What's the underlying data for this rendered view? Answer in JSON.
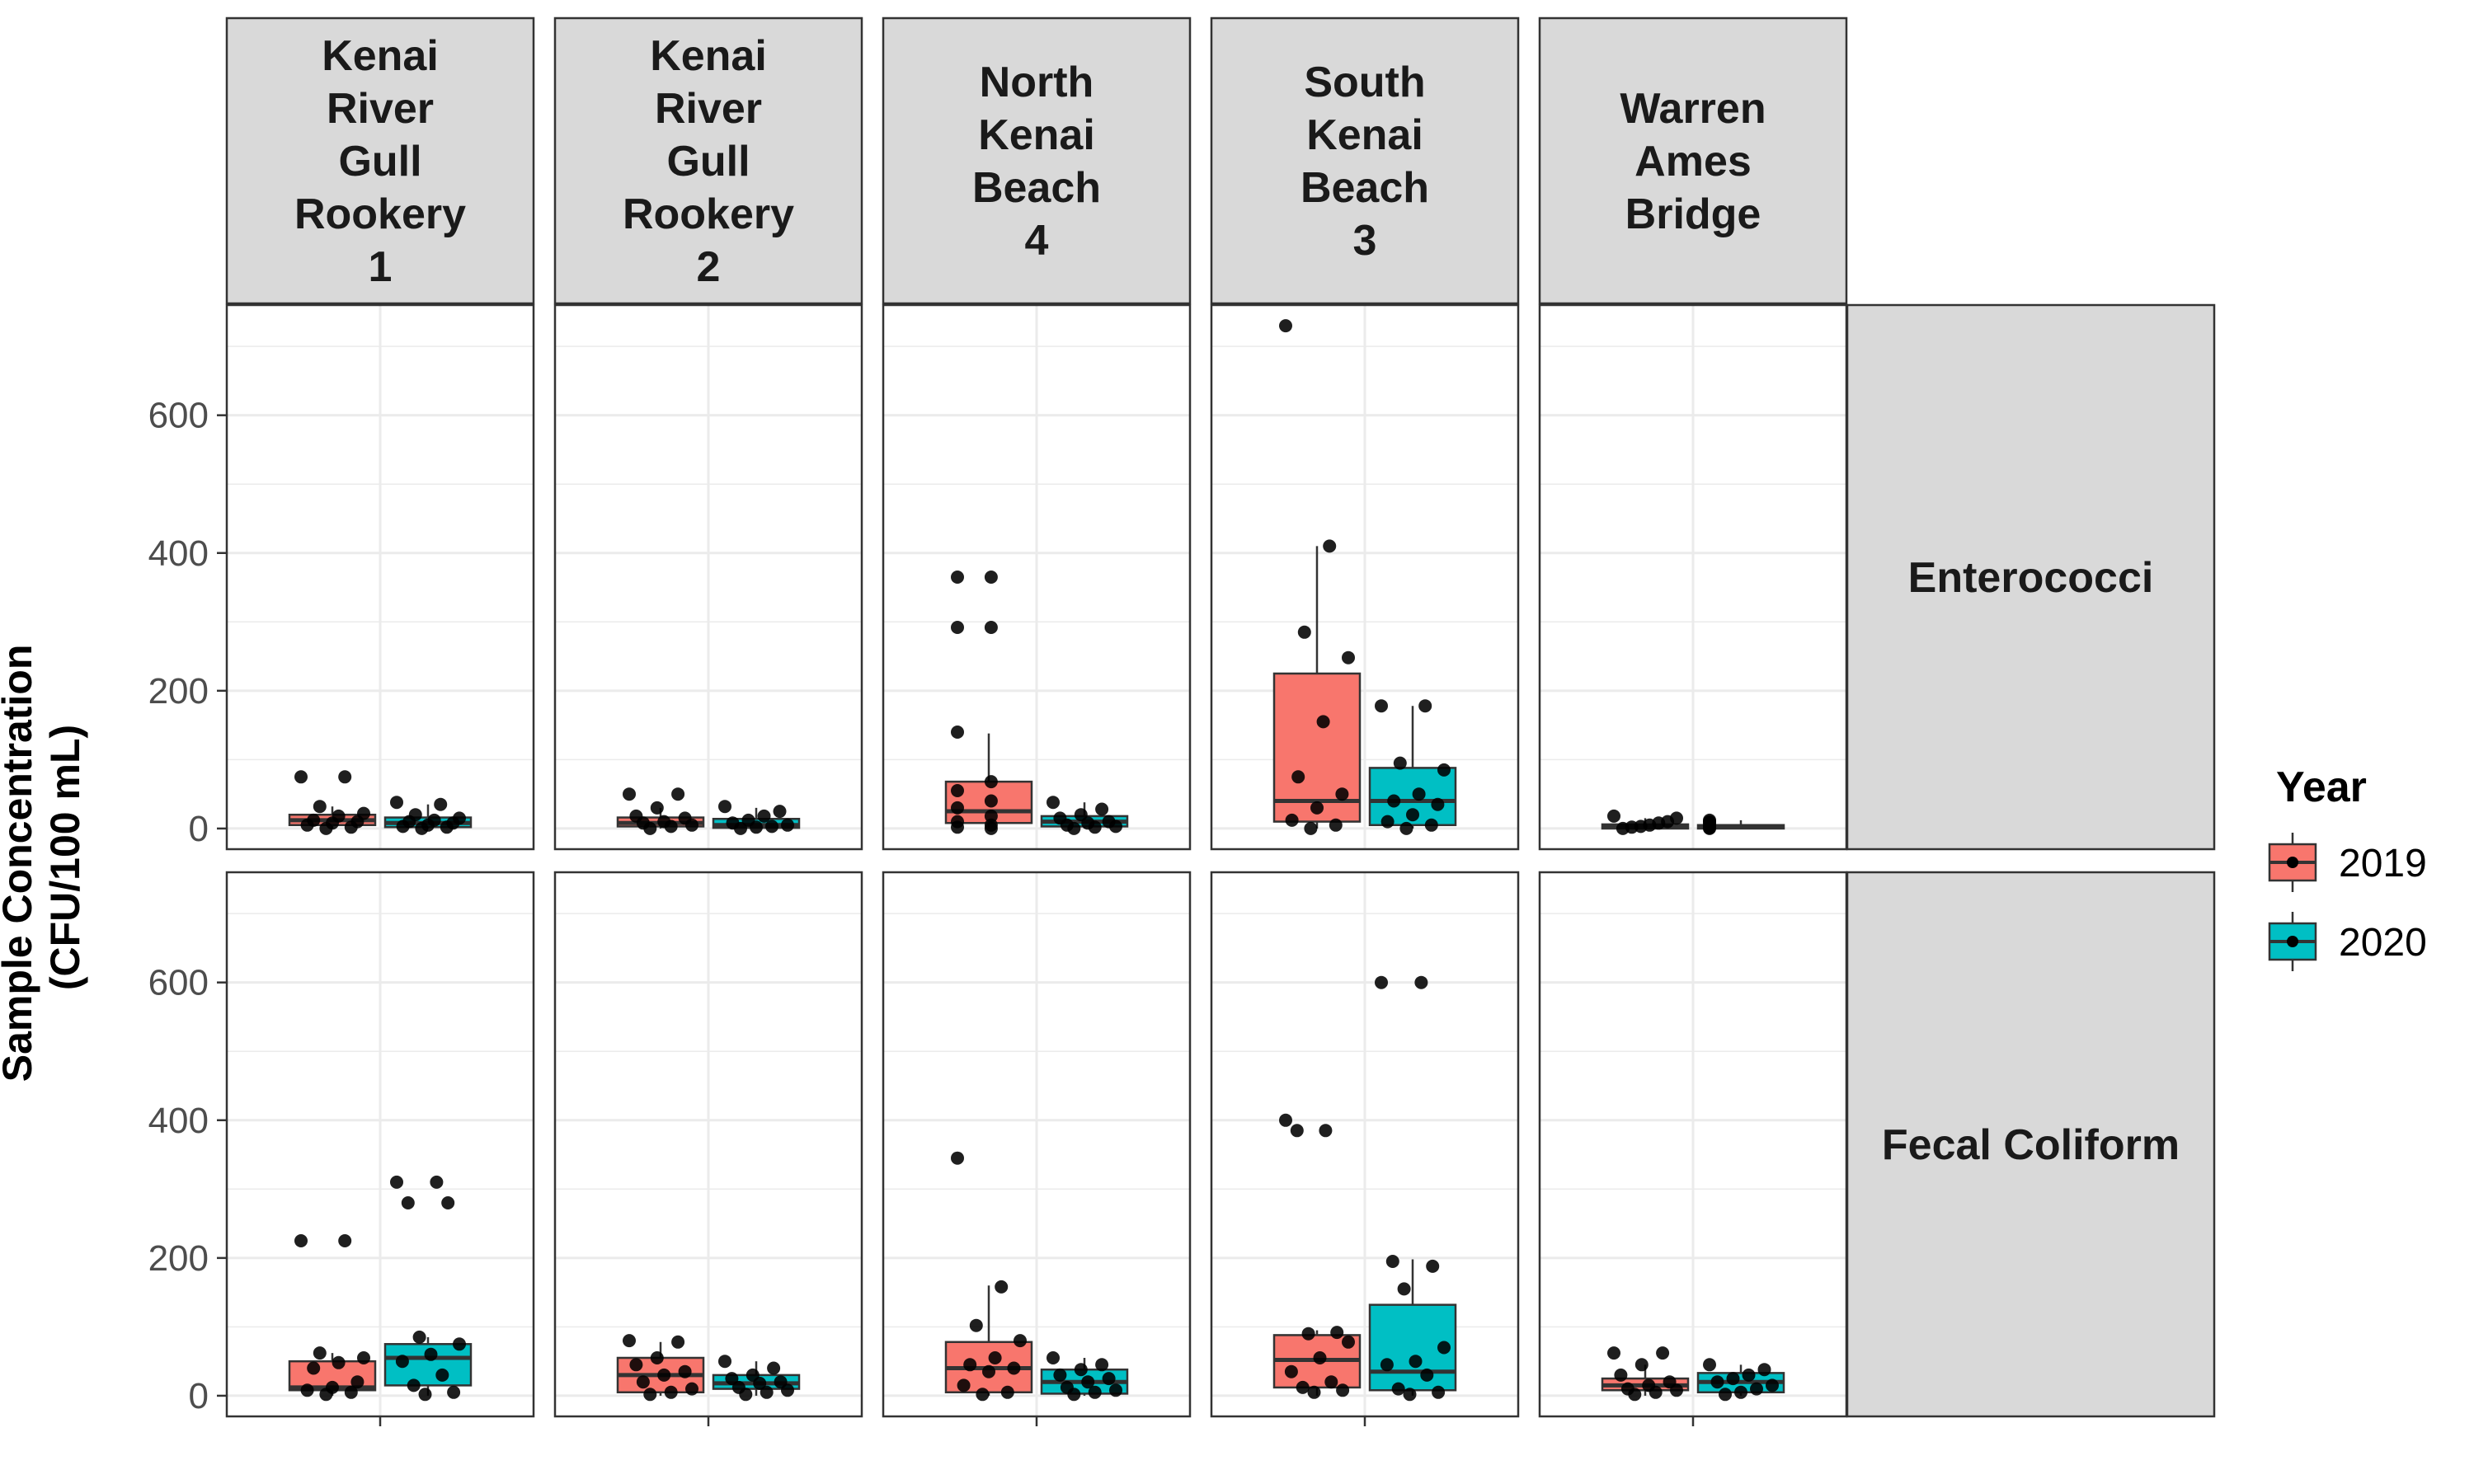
{
  "chart_data": {
    "type": "boxplot",
    "facet_columns": [
      [
        "Kenai",
        "River",
        "Gull",
        "Rookery",
        "1"
      ],
      [
        "Kenai",
        "River",
        "Gull",
        "Rookery",
        "2"
      ],
      [
        "North",
        "Kenai",
        "Beach",
        "4"
      ],
      [
        "South",
        "Kenai",
        "Beach",
        "3"
      ],
      [
        "Warren",
        "Ames",
        "Bridge"
      ]
    ],
    "facet_rows": [
      "Enterococci",
      "Fecal Coliform"
    ],
    "ylabel": [
      "Sample Concentration",
      "(CFU/100 mL)"
    ],
    "ylim": [
      -30,
      760
    ],
    "yticks": [
      0,
      200,
      400,
      600
    ],
    "legend": {
      "title": "Year",
      "position": "right",
      "items": [
        "2019",
        "2020"
      ]
    },
    "colors": {
      "2019": "#F8766D",
      "2020": "#00BFC4",
      "strip": "#d9d9d9",
      "grid": "#ebebeb",
      "border": "#333333",
      "points": "#000000"
    },
    "panels": [
      {
        "row": "Enterococci",
        "col": 1,
        "boxes": [
          {
            "year": "2019",
            "q1": 5,
            "median": 12,
            "q3": 20,
            "whisker_low": 0,
            "whisker_high": 32,
            "points": [
              75,
              75,
              32,
              22,
              18,
              12,
              10,
              8,
              5,
              2,
              0
            ]
          },
          {
            "year": "2020",
            "q1": 2,
            "median": 8,
            "q3": 16,
            "whisker_low": 0,
            "whisker_high": 35,
            "points": [
              38,
              35,
              20,
              15,
              12,
              10,
              8,
              5,
              3,
              2,
              0
            ]
          }
        ]
      },
      {
        "row": "Enterococci",
        "col": 2,
        "boxes": [
          {
            "year": "2019",
            "q1": 3,
            "median": 8,
            "q3": 16,
            "whisker_low": 0,
            "whisker_high": 30,
            "points": [
              50,
              50,
              30,
              18,
              15,
              10,
              8,
              5,
              3,
              0
            ]
          },
          {
            "year": "2020",
            "q1": 1,
            "median": 5,
            "q3": 14,
            "whisker_low": 0,
            "whisker_high": 30,
            "points": [
              32,
              25,
              18,
              12,
              8,
              5,
              3,
              2,
              0
            ]
          }
        ]
      },
      {
        "row": "Enterococci",
        "col": 3,
        "boxes": [
          {
            "year": "2019",
            "q1": 8,
            "median": 25,
            "q3": 68,
            "whisker_low": 0,
            "whisker_high": 138,
            "points": [
              365,
              365,
              292,
              292,
              140,
              68,
              55,
              40,
              30,
              18,
              10,
              5,
              2,
              0
            ]
          },
          {
            "year": "2020",
            "q1": 3,
            "median": 10,
            "q3": 18,
            "whisker_low": 0,
            "whisker_high": 38,
            "points": [
              38,
              28,
              20,
              15,
              10,
              8,
              5,
              3,
              2,
              0
            ]
          }
        ]
      },
      {
        "row": "Enterococci",
        "col": 4,
        "boxes": [
          {
            "year": "2019",
            "q1": 10,
            "median": 40,
            "q3": 225,
            "whisker_low": 0,
            "whisker_high": 410,
            "points": [
              730,
              410,
              285,
              248,
              155,
              75,
              50,
              30,
              12,
              5,
              0
            ]
          },
          {
            "year": "2020",
            "q1": 5,
            "median": 40,
            "q3": 88,
            "whisker_low": 0,
            "whisker_high": 178,
            "points": [
              178,
              178,
              95,
              85,
              50,
              40,
              35,
              20,
              10,
              5,
              0
            ]
          }
        ]
      },
      {
        "row": "Enterococci",
        "col": 5,
        "boxes": [
          {
            "year": "2019",
            "q1": 0,
            "median": 2,
            "q3": 6,
            "whisker_low": 0,
            "whisker_high": 15,
            "points": [
              18,
              15,
              10,
              8,
              5,
              3,
              2,
              0
            ]
          },
          {
            "year": "2020",
            "q1": 0,
            "median": 2,
            "q3": 5,
            "whisker_low": 0,
            "whisker_high": 12,
            "points": [
              12,
              10,
              8,
              5,
              3,
              1,
              0
            ]
          }
        ]
      },
      {
        "row": "Fecal Coliform",
        "col": 1,
        "boxes": [
          {
            "year": "2019",
            "q1": 8,
            "median": 12,
            "q3": 50,
            "whisker_low": 0,
            "whisker_high": 62,
            "points": [
              225,
              225,
              62,
              55,
              48,
              40,
              20,
              12,
              8,
              5,
              2
            ]
          },
          {
            "year": "2020",
            "q1": 15,
            "median": 55,
            "q3": 75,
            "whisker_low": 0,
            "whisker_high": 85,
            "points": [
              310,
              310,
              280,
              280,
              85,
              75,
              60,
              50,
              30,
              15,
              5,
              2
            ]
          }
        ]
      },
      {
        "row": "Fecal Coliform",
        "col": 2,
        "boxes": [
          {
            "year": "2019",
            "q1": 5,
            "median": 30,
            "q3": 55,
            "whisker_low": 0,
            "whisker_high": 78,
            "points": [
              80,
              78,
              55,
              45,
              35,
              30,
              20,
              10,
              5,
              2
            ]
          },
          {
            "year": "2020",
            "q1": 10,
            "median": 18,
            "q3": 30,
            "whisker_low": 0,
            "whisker_high": 50,
            "points": [
              50,
              40,
              30,
              25,
              20,
              18,
              12,
              8,
              5,
              2
            ]
          }
        ]
      },
      {
        "row": "Fecal Coliform",
        "col": 3,
        "boxes": [
          {
            "year": "2019",
            "q1": 5,
            "median": 40,
            "q3": 78,
            "whisker_low": 0,
            "whisker_high": 160,
            "points": [
              345,
              158,
              102,
              80,
              55,
              45,
              40,
              35,
              15,
              5,
              2
            ]
          },
          {
            "year": "2020",
            "q1": 3,
            "median": 20,
            "q3": 38,
            "whisker_low": 0,
            "whisker_high": 55,
            "points": [
              55,
              45,
              38,
              30,
              25,
              20,
              12,
              8,
              5,
              2
            ]
          }
        ]
      },
      {
        "row": "Fecal Coliform",
        "col": 4,
        "boxes": [
          {
            "year": "2019",
            "q1": 12,
            "median": 52,
            "q3": 88,
            "whisker_low": 0,
            "whisker_high": 95,
            "points": [
              400,
              385,
              385,
              92,
              90,
              78,
              55,
              35,
              20,
              12,
              8,
              5
            ]
          },
          {
            "year": "2020",
            "q1": 8,
            "median": 35,
            "q3": 132,
            "whisker_low": 0,
            "whisker_high": 198,
            "points": [
              600,
              600,
              195,
              188,
              155,
              70,
              50,
              45,
              30,
              10,
              5,
              2
            ]
          }
        ]
      },
      {
        "row": "Fecal Coliform",
        "col": 5,
        "boxes": [
          {
            "year": "2019",
            "q1": 8,
            "median": 15,
            "q3": 25,
            "whisker_low": 0,
            "whisker_high": 45,
            "points": [
              62,
              62,
              45,
              30,
              20,
              15,
              10,
              8,
              5,
              2
            ]
          },
          {
            "year": "2020",
            "q1": 5,
            "median": 20,
            "q3": 33,
            "whisker_low": 0,
            "whisker_high": 45,
            "points": [
              45,
              38,
              30,
              25,
              20,
              15,
              10,
              5,
              2
            ]
          }
        ]
      }
    ]
  }
}
